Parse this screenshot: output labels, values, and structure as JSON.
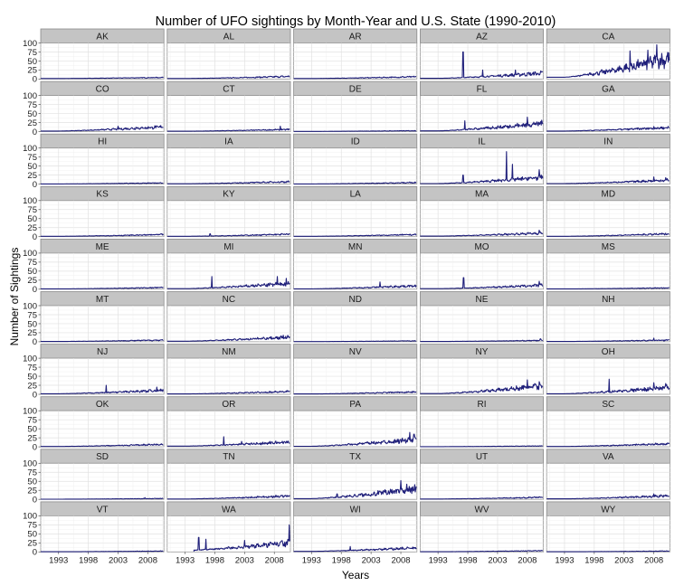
{
  "chart_data": {
    "type": "line",
    "layout": "facet-grid",
    "title": "Number of UFO sightings by Month-Year and U.S. State (1990-2010)",
    "xlabel": "Years",
    "ylabel": "Number of Sightings",
    "xlim": [
      1990,
      2010.7
    ],
    "ylim": [
      0,
      100
    ],
    "x_ticks": [
      "1993",
      "1998",
      "2003",
      "2008"
    ],
    "y_ticks": [
      "0",
      "25",
      "50",
      "75",
      "100"
    ],
    "grid": true,
    "line_color": "#1f1f7a",
    "panels": [
      {
        "state": "AK",
        "base": 1.5,
        "trend": 3,
        "peaks": []
      },
      {
        "state": "AL",
        "base": 1.5,
        "trend": 6,
        "peaks": [
          [
            2008.5,
            6
          ]
        ]
      },
      {
        "state": "AR",
        "base": 1.5,
        "trend": 5,
        "peaks": [
          [
            2002.5,
            5
          ]
        ]
      },
      {
        "state": "AZ",
        "base": 2,
        "trend": 15,
        "peaks": [
          [
            1997.2,
            75
          ],
          [
            2000.5,
            25
          ],
          [
            2006,
            25
          ]
        ]
      },
      {
        "state": "CA",
        "base": 5,
        "trend": 55,
        "peaks": [
          [
            2008.5,
            95
          ],
          [
            2007,
            80
          ],
          [
            2004,
            78
          ]
        ]
      },
      {
        "state": "CO",
        "base": 1.5,
        "trend": 12,
        "peaks": [
          [
            2003,
            15
          ],
          [
            2006,
            12
          ]
        ]
      },
      {
        "state": "CT",
        "base": 1,
        "trend": 5,
        "peaks": [
          [
            2009,
            15
          ]
        ]
      },
      {
        "state": "DE",
        "base": 0.5,
        "trend": 2,
        "peaks": []
      },
      {
        "state": "FL",
        "base": 2,
        "trend": 22,
        "peaks": [
          [
            1997.5,
            30
          ],
          [
            2008,
            40
          ]
        ]
      },
      {
        "state": "GA",
        "base": 1.5,
        "trend": 10,
        "peaks": [
          [
            2008,
            14
          ]
        ]
      },
      {
        "state": "HI",
        "base": 0.5,
        "trend": 3,
        "peaks": []
      },
      {
        "state": "IA",
        "base": 1,
        "trend": 6,
        "peaks": []
      },
      {
        "state": "ID",
        "base": 0.5,
        "trend": 4,
        "peaks": [
          [
            2009.5,
            6
          ]
        ]
      },
      {
        "state": "IL",
        "base": 1.5,
        "trend": 18,
        "peaks": [
          [
            2004.5,
            90
          ],
          [
            2005.5,
            55
          ],
          [
            1997.2,
            25
          ],
          [
            2010,
            40
          ]
        ]
      },
      {
        "state": "IN",
        "base": 1.5,
        "trend": 10,
        "peaks": [
          [
            2008,
            20
          ],
          [
            2010,
            18
          ]
        ]
      },
      {
        "state": "KS",
        "base": 1,
        "trend": 5,
        "peaks": []
      },
      {
        "state": "KY",
        "base": 1,
        "trend": 6,
        "peaks": [
          [
            1997.2,
            8
          ]
        ]
      },
      {
        "state": "LA",
        "base": 1,
        "trend": 5,
        "peaks": []
      },
      {
        "state": "MA",
        "base": 1.5,
        "trend": 9,
        "peaks": [
          [
            2010,
            18
          ]
        ]
      },
      {
        "state": "MD",
        "base": 1,
        "trend": 7,
        "peaks": []
      },
      {
        "state": "ME",
        "base": 0.8,
        "trend": 4,
        "peaks": []
      },
      {
        "state": "MI",
        "base": 1.5,
        "trend": 15,
        "peaks": [
          [
            1997.5,
            35
          ],
          [
            2008.5,
            35
          ],
          [
            2010,
            30
          ]
        ]
      },
      {
        "state": "MN",
        "base": 1,
        "trend": 9,
        "peaks": [
          [
            2004.5,
            20
          ]
        ]
      },
      {
        "state": "MO",
        "base": 1.5,
        "trend": 10,
        "peaks": [
          [
            1997.3,
            32
          ],
          [
            2010,
            22
          ]
        ]
      },
      {
        "state": "MS",
        "base": 0.8,
        "trend": 3,
        "peaks": []
      },
      {
        "state": "MT",
        "base": 0.8,
        "trend": 4,
        "peaks": []
      },
      {
        "state": "NC",
        "base": 1.5,
        "trend": 12,
        "peaks": [
          [
            2009.5,
            18
          ]
        ]
      },
      {
        "state": "ND",
        "base": 0.5,
        "trend": 2,
        "peaks": []
      },
      {
        "state": "NE",
        "base": 0.8,
        "trend": 3,
        "peaks": [
          [
            2010.2,
            8
          ]
        ]
      },
      {
        "state": "NH",
        "base": 0.8,
        "trend": 4,
        "peaks": [
          [
            2008,
            10
          ]
        ]
      },
      {
        "state": "NJ",
        "base": 1.5,
        "trend": 10,
        "peaks": [
          [
            2001,
            25
          ],
          [
            2009.5,
            20
          ]
        ]
      },
      {
        "state": "NM",
        "base": 1,
        "trend": 7,
        "peaks": []
      },
      {
        "state": "NV",
        "base": 1,
        "trend": 6,
        "peaks": [
          [
            2010,
            7
          ]
        ]
      },
      {
        "state": "NY",
        "base": 2,
        "trend": 22,
        "peaks": [
          [
            2008,
            40
          ],
          [
            2010,
            35
          ]
        ]
      },
      {
        "state": "OH",
        "base": 1.5,
        "trend": 18,
        "peaks": [
          [
            2000.5,
            42
          ],
          [
            2008,
            32
          ],
          [
            2010,
            30
          ]
        ]
      },
      {
        "state": "OK",
        "base": 1,
        "trend": 6,
        "peaks": []
      },
      {
        "state": "OR",
        "base": 2,
        "trend": 12,
        "peaks": [
          [
            1999.5,
            28
          ],
          [
            2002.5,
            15
          ]
        ]
      },
      {
        "state": "PA",
        "base": 1.5,
        "trend": 20,
        "peaks": [
          [
            2009.5,
            40
          ],
          [
            2010.2,
            35
          ]
        ]
      },
      {
        "state": "RI",
        "base": 0.5,
        "trend": 2,
        "peaks": []
      },
      {
        "state": "SC",
        "base": 1,
        "trend": 8,
        "peaks": []
      },
      {
        "state": "SD",
        "base": 0.5,
        "trend": 2,
        "peaks": [
          [
            2007.5,
            5
          ]
        ]
      },
      {
        "state": "TN",
        "base": 1,
        "trend": 9,
        "peaks": []
      },
      {
        "state": "TX",
        "base": 2,
        "trend": 28,
        "peaks": [
          [
            2008,
            52
          ],
          [
            1997.3,
            15
          ],
          [
            2009,
            42
          ]
        ]
      },
      {
        "state": "UT",
        "base": 1,
        "trend": 5,
        "peaks": []
      },
      {
        "state": "VA",
        "base": 1.5,
        "trend": 9,
        "peaks": [
          [
            2008,
            15
          ]
        ]
      },
      {
        "state": "VT",
        "base": 0.5,
        "trend": 2,
        "peaks": []
      },
      {
        "state": "WA",
        "base": 4,
        "trend": 22,
        "peaks": [
          [
            1995.3,
            40
          ],
          [
            1996.5,
            35
          ],
          [
            2010.5,
            75
          ],
          [
            2003,
            32
          ]
        ]
      },
      {
        "state": "WI",
        "base": 1.5,
        "trend": 10,
        "peaks": [
          [
            1999.5,
            15
          ],
          [
            2008,
            12
          ]
        ]
      },
      {
        "state": "WV",
        "base": 0.5,
        "trend": 3,
        "peaks": []
      },
      {
        "state": "WY",
        "base": 0.5,
        "trend": 2,
        "peaks": []
      }
    ]
  }
}
